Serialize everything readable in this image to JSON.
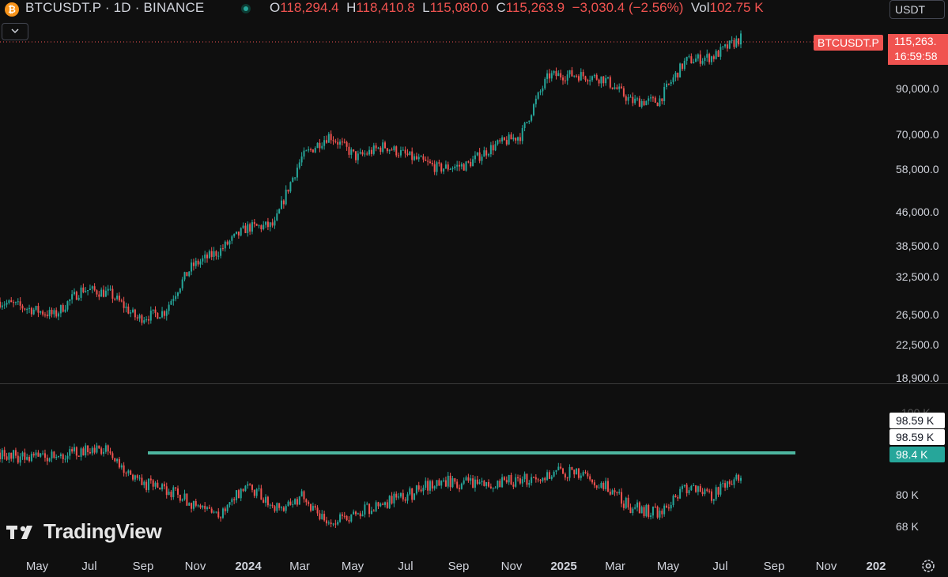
{
  "header": {
    "symbol_title": "BTCUSDT.P · 1D · BINANCE",
    "coin_icon": "bitcoin-icon",
    "ohlc": [
      {
        "key": "O",
        "value": "118,294.4"
      },
      {
        "key": "H",
        "value": "118,410.8"
      },
      {
        "key": "L",
        "value": "115,080.0"
      },
      {
        "key": "C",
        "value": "115,263.9"
      }
    ],
    "change": "−3,030.4 (−2.56%)",
    "vol_key": "Vol",
    "vol_value": "102.75 K",
    "currency": "USDT",
    "collapse_icon": "chevron-down-icon"
  },
  "price_scale": {
    "labels": [
      "90,000.0",
      "70,000.0",
      "58,000.0",
      "46,000.0",
      "38,500.0",
      "32,500.0",
      "26,500.0",
      "22,500.0",
      "18,900.0"
    ],
    "last_price": "115,263.",
    "countdown": "16:59:58",
    "symbol_tag": "BTCUSDT.P"
  },
  "volume_scale": {
    "labels": [
      "80 K",
      "68 K"
    ],
    "hidden_label": "100 K",
    "tags": [
      "98.59 K",
      "98.59 K",
      "98.4 K"
    ]
  },
  "time_axis": {
    "labels": [
      "May",
      "Jul",
      "Sep",
      "Nov",
      "2024",
      "Mar",
      "May",
      "Jul",
      "Sep",
      "Nov",
      "2025",
      "Mar",
      "May",
      "Jul",
      "Sep",
      "Nov",
      "202"
    ]
  },
  "branding": {
    "name": "TradingView",
    "logo": "tradingview-logo"
  },
  "settings_icon": "gear-icon",
  "colors": {
    "up": "#26a69a",
    "down": "#ef5350",
    "accent_line": "#4db6a0",
    "background": "#0f0f0f"
  },
  "chart_data": [
    {
      "type": "candlestick",
      "title": "BTCUSDT.P · 1D · BINANCE",
      "y_scale": "log",
      "ylim": [
        18900,
        125000
      ],
      "series": [
        {
          "name": "BTCUSDT.P",
          "x": [
            "2023-04",
            "2023-05",
            "2023-06",
            "2023-07",
            "2023-08",
            "2023-09",
            "2023-10",
            "2023-11",
            "2023-12",
            "2024-01",
            "2024-02",
            "2024-03",
            "2024-04",
            "2024-05",
            "2024-06",
            "2024-07",
            "2024-08",
            "2024-09",
            "2024-10",
            "2024-11",
            "2024-12",
            "2025-01",
            "2025-02",
            "2025-03",
            "2025-04",
            "2025-05",
            "2025-06",
            "2025-07"
          ],
          "close": [
            28500,
            27500,
            26500,
            30500,
            29800,
            26000,
            27000,
            34500,
            37500,
            42500,
            43000,
            62000,
            70000,
            62000,
            66000,
            62000,
            58500,
            59500,
            66000,
            70000,
            96500,
            97000,
            95000,
            84000,
            84000,
            104500,
            107000,
            118000
          ]
        }
      ]
    },
    {
      "type": "bar",
      "title": "",
      "ylim": [
        65000,
        103000
      ],
      "series": [
        {
          "name": "",
          "x": [
            "2023-04",
            "2023-05",
            "2023-06",
            "2023-07",
            "2023-08",
            "2023-09",
            "2023-10",
            "2023-11",
            "2023-12",
            "2024-01",
            "2024-02",
            "2024-03",
            "2024-04",
            "2024-05",
            "2024-06",
            "2024-07",
            "2024-08",
            "2024-09",
            "2024-10",
            "2024-11",
            "2024-12",
            "2025-01",
            "2025-02",
            "2025-03",
            "2025-04",
            "2025-05",
            "2025-06",
            "2025-07"
          ],
          "values": [
            96000,
            94000,
            95500,
            97000,
            96500,
            85000,
            82000,
            77000,
            72000,
            84000,
            75000,
            79000,
            70000,
            72500,
            77000,
            80500,
            85000,
            84500,
            85000,
            85500,
            88000,
            88500,
            84000,
            75000,
            73500,
            83000,
            80000,
            88000
          ]
        }
      ],
      "reference_line": 92500
    }
  ]
}
